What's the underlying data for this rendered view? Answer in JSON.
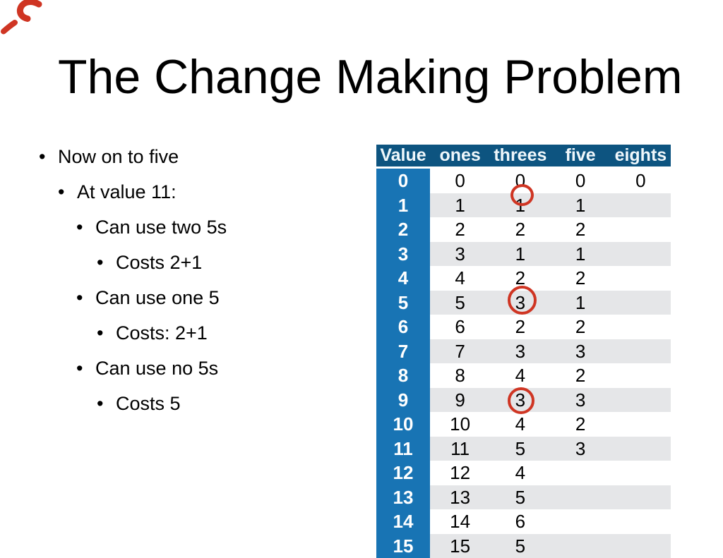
{
  "slide": {
    "title": "The Change Making Problem",
    "bullets": [
      {
        "level": 1,
        "text": "Now on to five"
      },
      {
        "level": 2,
        "text": "At value 11:"
      },
      {
        "level": 3,
        "text": "Can use two 5s"
      },
      {
        "level": 4,
        "text": "Costs 2+1"
      },
      {
        "level": 3,
        "text": "Can use one 5"
      },
      {
        "level": 4,
        "text": "Costs: 2+1"
      },
      {
        "level": 3,
        "text": "Can use no 5s"
      },
      {
        "level": 4,
        "text": "Costs 5"
      }
    ]
  },
  "table": {
    "headers": [
      "Value",
      "ones",
      "threes",
      "five",
      "eights"
    ],
    "rows": [
      [
        "0",
        "0",
        "0",
        "0",
        "0"
      ],
      [
        "1",
        "1",
        "1",
        "1",
        ""
      ],
      [
        "2",
        "2",
        "2",
        "2",
        ""
      ],
      [
        "3",
        "3",
        "1",
        "1",
        ""
      ],
      [
        "4",
        "4",
        "2",
        "2",
        ""
      ],
      [
        "5",
        "5",
        "3",
        "1",
        ""
      ],
      [
        "6",
        "6",
        "2",
        "2",
        ""
      ],
      [
        "7",
        "7",
        "3",
        "3",
        ""
      ],
      [
        "8",
        "8",
        "4",
        "2",
        ""
      ],
      [
        "9",
        "9",
        "3",
        "3",
        ""
      ],
      [
        "10",
        "10",
        "4",
        "2",
        ""
      ],
      [
        "11",
        "11",
        "5",
        "3",
        ""
      ],
      [
        "12",
        "12",
        "4",
        "",
        ""
      ],
      [
        "13",
        "13",
        "5",
        "",
        ""
      ],
      [
        "14",
        "14",
        "6",
        "",
        ""
      ],
      [
        "15",
        "15",
        "5",
        "",
        ""
      ]
    ],
    "circled_cells": [
      {
        "row": 1,
        "column": "threes",
        "value": "1"
      },
      {
        "row": 5,
        "column": "threes",
        "value": "3"
      },
      {
        "row": 9,
        "column": "threes",
        "value": "3"
      }
    ]
  },
  "colors": {
    "header_bg": "#0d5480",
    "value_col_bg": "#1874b4",
    "stripe_bg": "#e5e6e8",
    "annotation_red": "#cf3523"
  }
}
